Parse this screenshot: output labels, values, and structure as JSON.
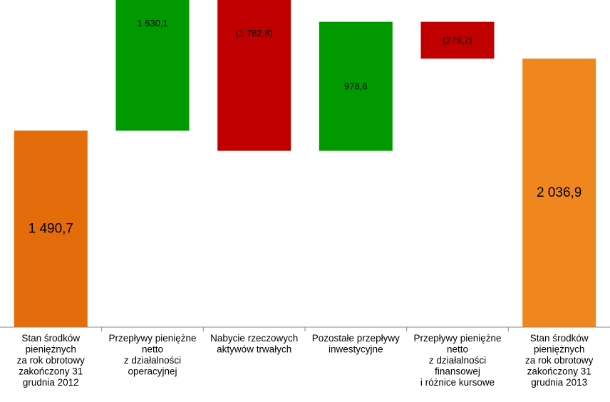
{
  "chart_data": {
    "type": "bar",
    "subtype": "waterfall",
    "title": "",
    "xlabel": "",
    "ylabel": "",
    "ylim": [
      0,
      2660
    ],
    "grid": false,
    "legend": "none",
    "categories": [
      [
        "Stan środków",
        "pieniężnych",
        "za rok obrotowy",
        "zakończony 31",
        "grudnia 2012"
      ],
      [
        "Przepływy pieniężne",
        "netto",
        "z działalności",
        "operacyjnej"
      ],
      [
        "Nabycie rzeczowych",
        "aktywów trwałych"
      ],
      [
        "Pozostałe przepływy",
        "inwestycyjne"
      ],
      [
        "Przepływy pieniężne",
        "netto",
        "z działalności",
        "finansowej",
        "i różnice kursowe"
      ],
      [
        "Stan środków",
        "pieniężnych",
        "za rok obrotowy",
        "zakończony 31",
        "grudnia 2013"
      ]
    ],
    "bars": [
      {
        "kind": "total",
        "start": 0,
        "end": 1490.7,
        "label": "1 490,7",
        "color": "#e46c0a"
      },
      {
        "kind": "increase",
        "start": 1490.7,
        "end": 3120.8,
        "label": "1 630,1",
        "color": "#009900"
      },
      {
        "kind": "decrease",
        "start": 3120.8,
        "end": 1338.0,
        "label": "(1 782,8)",
        "color": "#c00000"
      },
      {
        "kind": "increase",
        "start": 1338.0,
        "end": 2316.6,
        "label": "978,6",
        "color": "#009900"
      },
      {
        "kind": "decrease",
        "start": 2316.6,
        "end": 2036.9,
        "label": "(279,7)",
        "color": "#c00000"
      },
      {
        "kind": "total",
        "start": 0,
        "end": 2036.9,
        "label": "2 036,9",
        "color": "#f0861e"
      }
    ]
  }
}
